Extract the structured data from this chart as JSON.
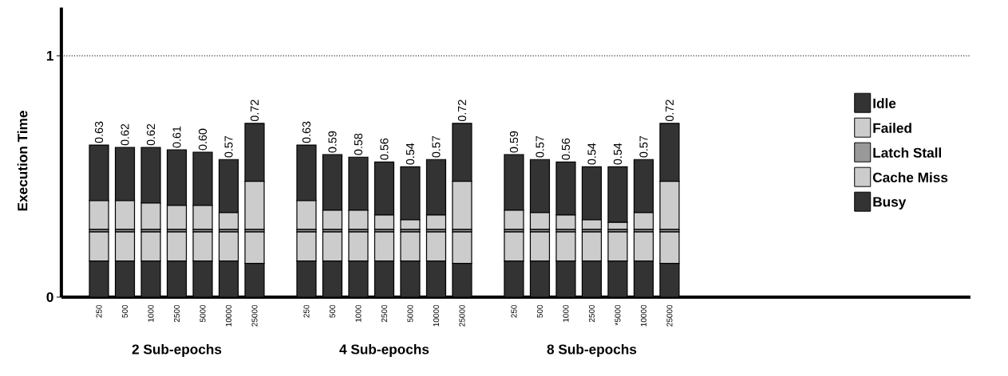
{
  "chart_data": {
    "type": "bar",
    "stacked": true,
    "ylabel": "Execution Time",
    "categories": [
      "250",
      "500",
      "1000",
      "2500",
      "5000",
      "10000",
      "25000",
      null,
      "250",
      "500",
      "1000",
      "2500",
      "5000",
      "10000",
      "25000",
      null,
      "250",
      "500",
      "1000",
      "2500",
      "*5000",
      "10000",
      "25000"
    ],
    "series": [
      {
        "name": "Busy",
        "color": "#333333",
        "values": [
          0.15,
          0.15,
          0.15,
          0.15,
          0.15,
          0.15,
          0.14,
          null,
          0.15,
          0.15,
          0.15,
          0.15,
          0.15,
          0.15,
          0.14,
          null,
          0.15,
          0.15,
          0.15,
          0.15,
          0.15,
          0.15,
          0.14
        ]
      },
      {
        "name": "Cache Miss",
        "color": "#cccccc",
        "values": [
          0.12,
          0.12,
          0.12,
          0.12,
          0.12,
          0.12,
          0.13,
          null,
          0.12,
          0.12,
          0.12,
          0.12,
          0.12,
          0.12,
          0.13,
          null,
          0.12,
          0.12,
          0.12,
          0.12,
          0.12,
          0.12,
          0.13
        ]
      },
      {
        "name": "Latch Stall",
        "color": "#999999",
        "values": [
          0.01,
          0.01,
          0.01,
          0.01,
          0.01,
          0.01,
          0.01,
          null,
          0.01,
          0.01,
          0.01,
          0.01,
          0.01,
          0.01,
          0.01,
          null,
          0.01,
          0.01,
          0.01,
          0.01,
          0.01,
          0.01,
          0.01
        ]
      },
      {
        "name": "Failed",
        "color": "#cccccc",
        "values": [
          0.12,
          0.12,
          0.11,
          0.1,
          0.1,
          0.07,
          0.2,
          null,
          0.12,
          0.08,
          0.08,
          0.06,
          0.04,
          0.06,
          0.2,
          null,
          0.08,
          0.07,
          0.06,
          0.04,
          0.03,
          0.07,
          0.2
        ]
      },
      {
        "name": "Idle",
        "color": "#333333",
        "values": [
          0.23,
          0.22,
          0.23,
          0.23,
          0.22,
          0.22,
          0.24,
          null,
          0.23,
          0.23,
          0.22,
          0.22,
          0.22,
          0.23,
          0.24,
          null,
          0.23,
          0.22,
          0.22,
          0.22,
          0.23,
          0.22,
          0.24
        ]
      }
    ],
    "totals": [
      "0.63",
      "0.62",
      "0.62",
      "0.61",
      "0.60",
      "0.57",
      "0.72",
      null,
      "0.63",
      "0.59",
      "0.58",
      "0.56",
      "0.54",
      "0.57",
      "0.72",
      null,
      "0.59",
      "0.57",
      "0.56",
      "0.54",
      "0.54",
      "0.57",
      "0.72"
    ],
    "ylim": [
      0,
      1.2
    ],
    "yticks": [
      0,
      1
    ],
    "ref_lines": [
      {
        "axis": "y",
        "value": 1,
        "line_style": "dotted"
      }
    ],
    "legend": "right",
    "annotations": [
      "2 Sub-epochs",
      "4 Sub-epochs",
      "8 Sub-epochs"
    ]
  }
}
